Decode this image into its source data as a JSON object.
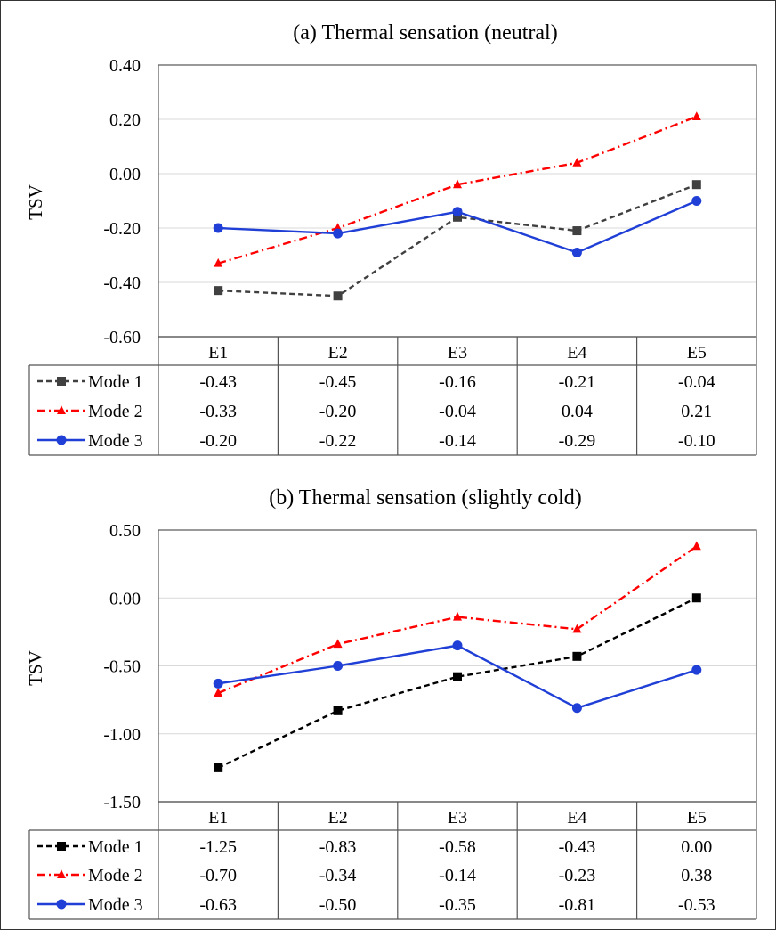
{
  "chart_data": [
    {
      "type": "line",
      "title": "(a) Thermal sensation (neutral)",
      "ylabel": "TSV",
      "xlabel": "",
      "ylim": [
        -0.6,
        0.4
      ],
      "ytick_step": 0.2,
      "yticks": [
        "0.40",
        "0.20",
        "0.00",
        "-0.20",
        "-0.40",
        "-0.60"
      ],
      "grid": true,
      "legend": "data table below chart",
      "categories": [
        "E1",
        "E2",
        "E3",
        "E4",
        "E5"
      ],
      "series": [
        {
          "name": "Mode 1",
          "values": [
            -0.43,
            -0.45,
            -0.16,
            -0.21,
            -0.04
          ],
          "labels": [
            "-0.43",
            "-0.45",
            "-0.16",
            "-0.21",
            "-0.04"
          ],
          "color": "#404040",
          "dash": "dashed",
          "marker": "square"
        },
        {
          "name": "Mode 2",
          "values": [
            -0.33,
            -0.2,
            -0.04,
            0.04,
            0.21
          ],
          "labels": [
            "-0.33",
            "-0.20",
            "-0.04",
            "0.04",
            "0.21"
          ],
          "color": "#ff0000",
          "dash": "dash-dot",
          "marker": "triangle"
        },
        {
          "name": "Mode 3",
          "values": [
            -0.2,
            -0.22,
            -0.14,
            -0.29,
            -0.1
          ],
          "labels": [
            "-0.20",
            "-0.22",
            "-0.14",
            "-0.29",
            "-0.10"
          ],
          "color": "#1f3fd6",
          "dash": "solid",
          "marker": "circle"
        }
      ]
    },
    {
      "type": "line",
      "title": "(b) Thermal sensation (slightly cold)",
      "ylabel": "TSV",
      "xlabel": "",
      "ylim": [
        -1.5,
        0.5
      ],
      "ytick_step": 0.5,
      "yticks": [
        "0.50",
        "0.00",
        "-0.50",
        "-1.00",
        "-1.50"
      ],
      "grid": true,
      "legend": "data table below chart",
      "categories": [
        "E1",
        "E2",
        "E3",
        "E4",
        "E5"
      ],
      "series": [
        {
          "name": "Mode 1",
          "values": [
            -1.25,
            -0.83,
            -0.58,
            -0.43,
            0.0
          ],
          "labels": [
            "-1.25",
            "-0.83",
            "-0.58",
            "-0.43",
            "0.00"
          ],
          "color": "#000000",
          "dash": "dashed",
          "marker": "square"
        },
        {
          "name": "Mode 2",
          "values": [
            -0.7,
            -0.34,
            -0.14,
            -0.23,
            0.38
          ],
          "labels": [
            "-0.70",
            "-0.34",
            "-0.14",
            "-0.23",
            "0.38"
          ],
          "color": "#ff0000",
          "dash": "dash-dot",
          "marker": "triangle"
        },
        {
          "name": "Mode 3",
          "values": [
            -0.63,
            -0.5,
            -0.35,
            -0.81,
            -0.53
          ],
          "labels": [
            "-0.63",
            "-0.50",
            "-0.35",
            "-0.81",
            "-0.53"
          ],
          "color": "#1f3fd6",
          "dash": "solid",
          "marker": "circle"
        }
      ]
    }
  ]
}
